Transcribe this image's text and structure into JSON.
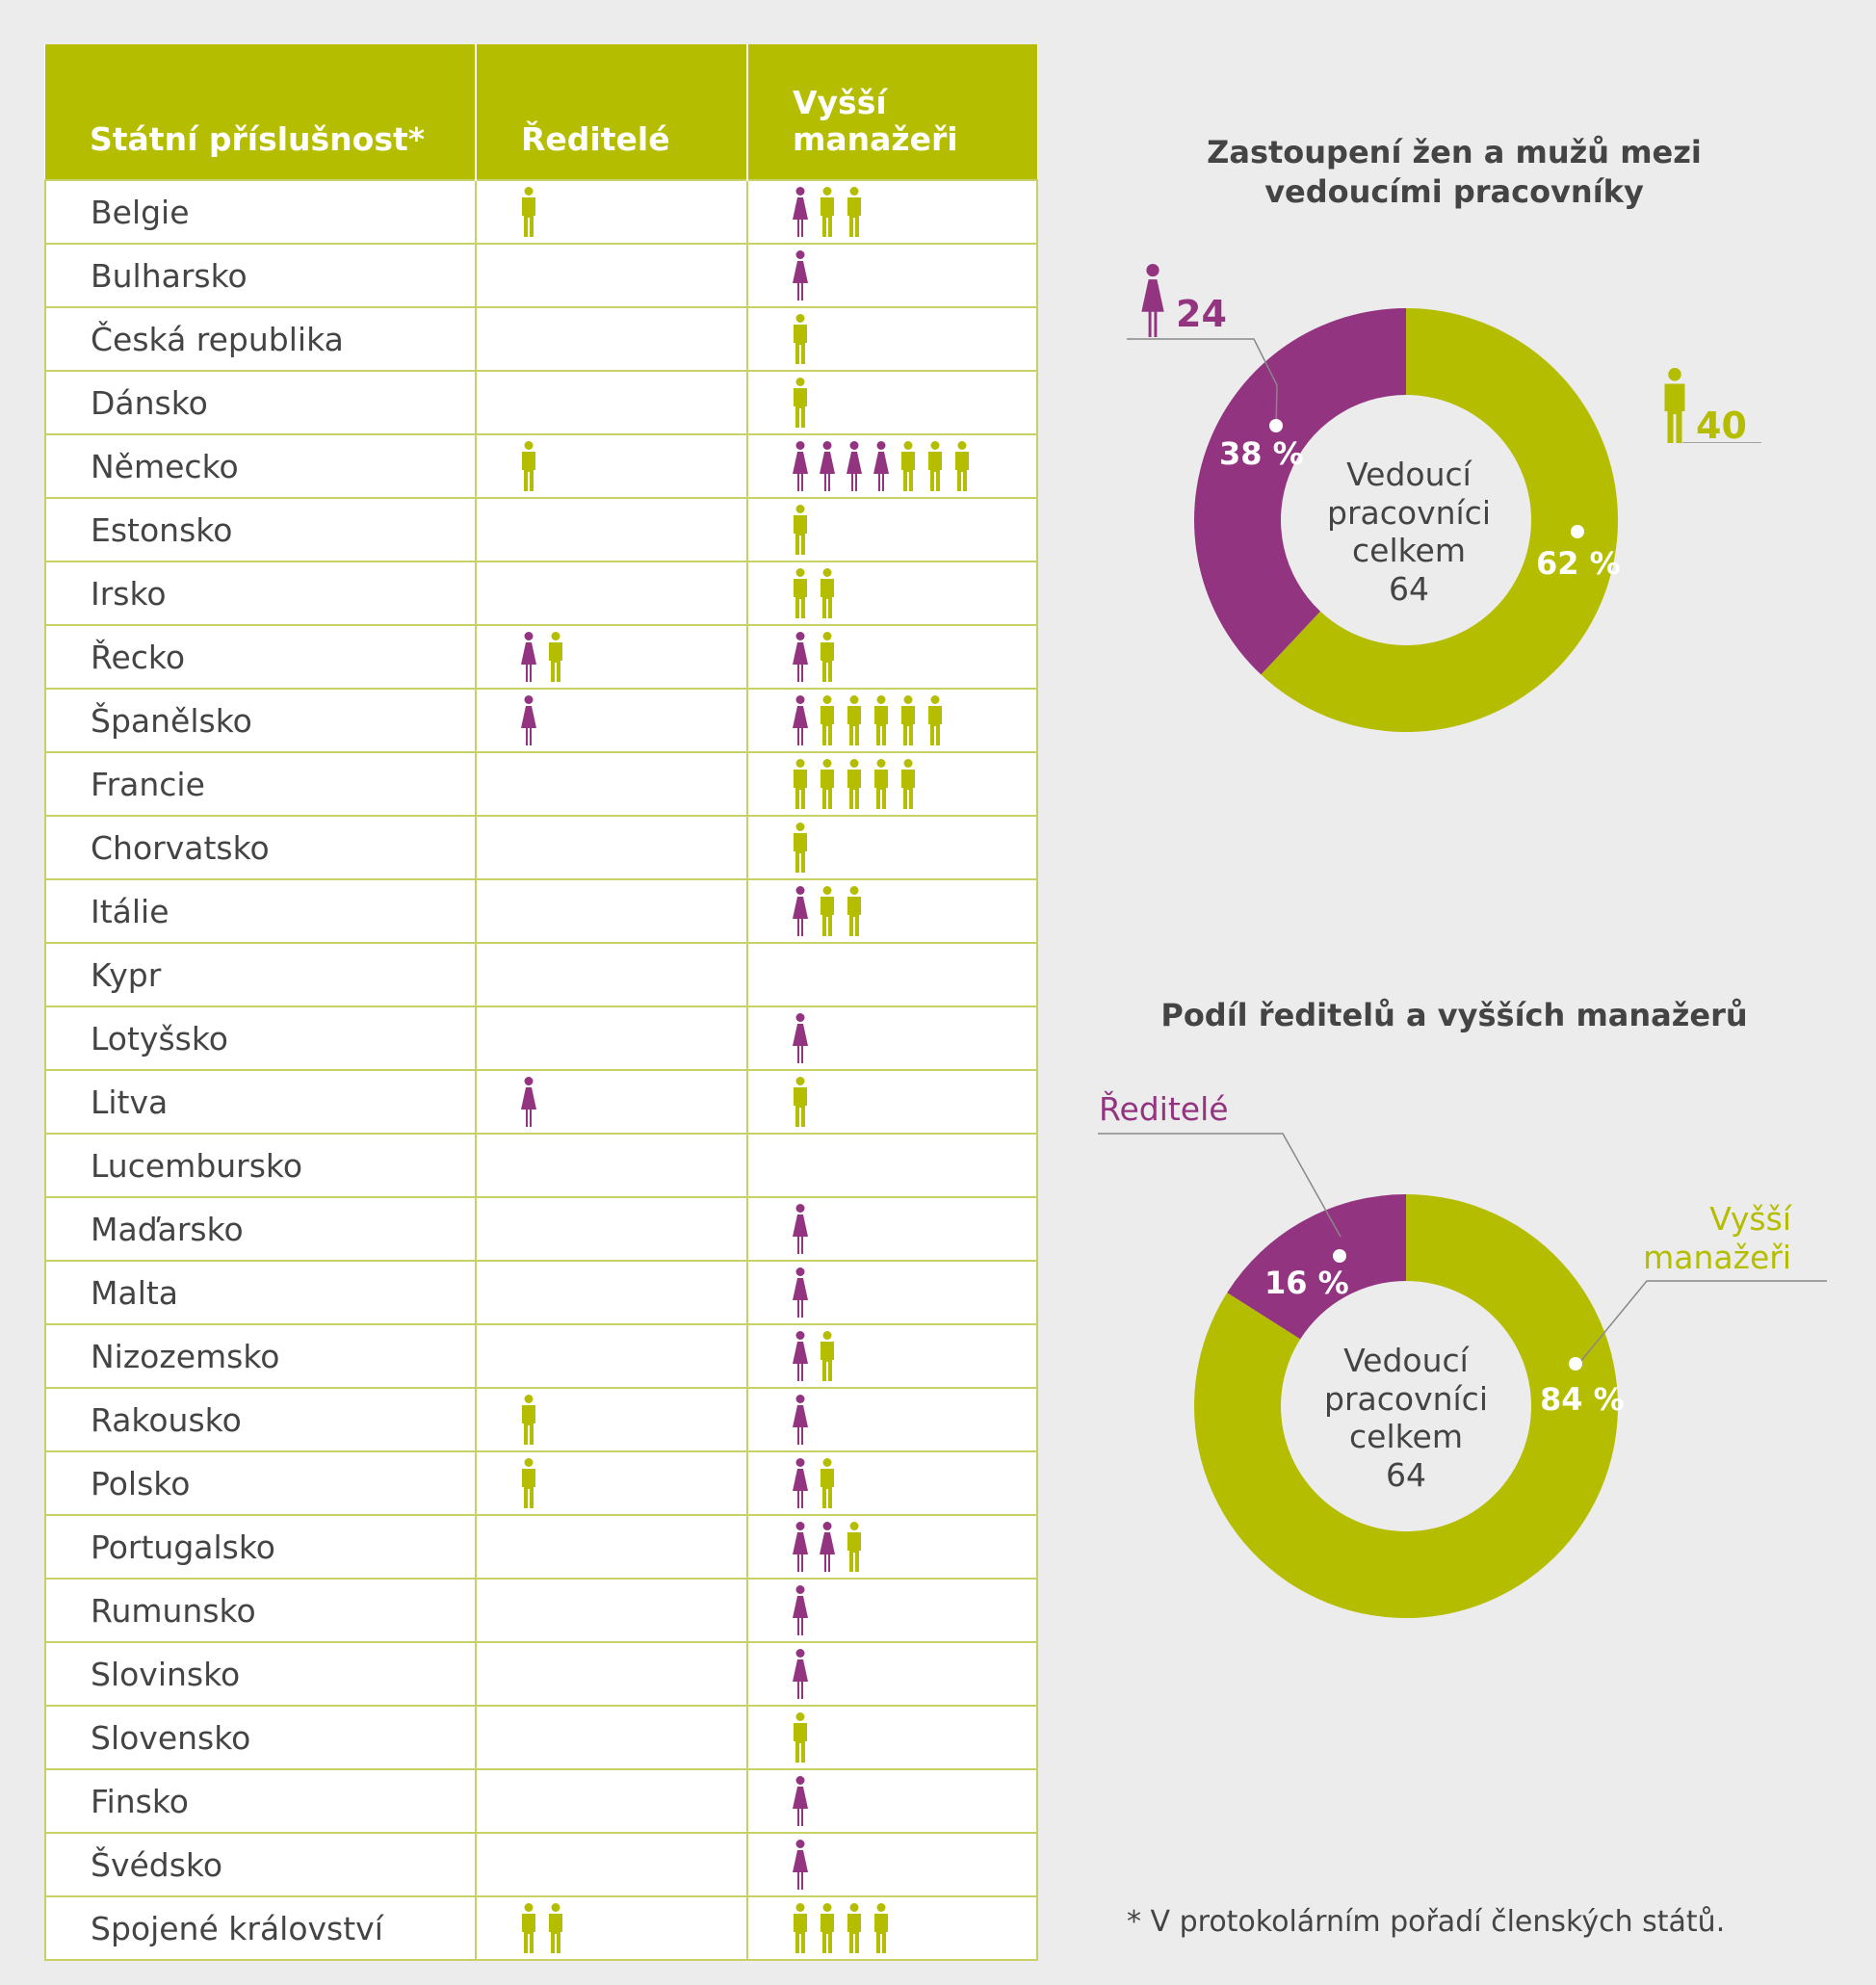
{
  "colors": {
    "women": "#933481",
    "men": "#b5bd00",
    "header": "#b5bd00"
  },
  "table": {
    "headers": {
      "country": "Státní příslušnost*",
      "directors": "Ředitelé",
      "senior": "Vyšší manažeři"
    },
    "rows": [
      {
        "country": "Belgie",
        "directors": {
          "f": 0,
          "m": 1
        },
        "senior": {
          "f": 1,
          "m": 2
        }
      },
      {
        "country": "Bulharsko",
        "directors": {
          "f": 0,
          "m": 0
        },
        "senior": {
          "f": 1,
          "m": 0
        }
      },
      {
        "country": "Česká republika",
        "directors": {
          "f": 0,
          "m": 0
        },
        "senior": {
          "f": 0,
          "m": 1
        }
      },
      {
        "country": "Dánsko",
        "directors": {
          "f": 0,
          "m": 0
        },
        "senior": {
          "f": 0,
          "m": 1
        }
      },
      {
        "country": "Německo",
        "directors": {
          "f": 0,
          "m": 1
        },
        "senior": {
          "f": 4,
          "m": 3
        }
      },
      {
        "country": "Estonsko",
        "directors": {
          "f": 0,
          "m": 0
        },
        "senior": {
          "f": 0,
          "m": 1
        }
      },
      {
        "country": "Irsko",
        "directors": {
          "f": 0,
          "m": 0
        },
        "senior": {
          "f": 0,
          "m": 2
        }
      },
      {
        "country": "Řecko",
        "directors": {
          "f": 1,
          "m": 1
        },
        "senior": {
          "f": 1,
          "m": 1
        }
      },
      {
        "country": "Španělsko",
        "directors": {
          "f": 1,
          "m": 0
        },
        "senior": {
          "f": 1,
          "m": 5
        }
      },
      {
        "country": "Francie",
        "directors": {
          "f": 0,
          "m": 0
        },
        "senior": {
          "f": 0,
          "m": 5
        }
      },
      {
        "country": "Chorvatsko",
        "directors": {
          "f": 0,
          "m": 0
        },
        "senior": {
          "f": 0,
          "m": 1
        }
      },
      {
        "country": "Itálie",
        "directors": {
          "f": 0,
          "m": 0
        },
        "senior": {
          "f": 1,
          "m": 2
        }
      },
      {
        "country": "Kypr",
        "directors": {
          "f": 0,
          "m": 0
        },
        "senior": {
          "f": 0,
          "m": 0
        }
      },
      {
        "country": "Lotyšsko",
        "directors": {
          "f": 0,
          "m": 0
        },
        "senior": {
          "f": 1,
          "m": 0
        }
      },
      {
        "country": "Litva",
        "directors": {
          "f": 1,
          "m": 0
        },
        "senior": {
          "f": 0,
          "m": 1
        }
      },
      {
        "country": "Lucembursko",
        "directors": {
          "f": 0,
          "m": 0
        },
        "senior": {
          "f": 0,
          "m": 0
        }
      },
      {
        "country": "Maďarsko",
        "directors": {
          "f": 0,
          "m": 0
        },
        "senior": {
          "f": 1,
          "m": 0
        }
      },
      {
        "country": "Malta",
        "directors": {
          "f": 0,
          "m": 0
        },
        "senior": {
          "f": 1,
          "m": 0
        }
      },
      {
        "country": "Nizozemsko",
        "directors": {
          "f": 0,
          "m": 0
        },
        "senior": {
          "f": 1,
          "m": 1
        }
      },
      {
        "country": "Rakousko",
        "directors": {
          "f": 0,
          "m": 1
        },
        "senior": {
          "f": 1,
          "m": 0
        }
      },
      {
        "country": "Polsko",
        "directors": {
          "f": 0,
          "m": 1
        },
        "senior": {
          "f": 1,
          "m": 1
        }
      },
      {
        "country": "Portugalsko",
        "directors": {
          "f": 0,
          "m": 0
        },
        "senior": {
          "f": 2,
          "m": 1
        }
      },
      {
        "country": "Rumunsko",
        "directors": {
          "f": 0,
          "m": 0
        },
        "senior": {
          "f": 1,
          "m": 0
        }
      },
      {
        "country": "Slovinsko",
        "directors": {
          "f": 0,
          "m": 0
        },
        "senior": {
          "f": 1,
          "m": 0
        }
      },
      {
        "country": "Slovensko",
        "directors": {
          "f": 0,
          "m": 0
        },
        "senior": {
          "f": 0,
          "m": 1
        }
      },
      {
        "country": "Finsko",
        "directors": {
          "f": 0,
          "m": 0
        },
        "senior": {
          "f": 1,
          "m": 0
        }
      },
      {
        "country": "Švédsko",
        "directors": {
          "f": 0,
          "m": 0
        },
        "senior": {
          "f": 1,
          "m": 0
        }
      },
      {
        "country": "Spojené království",
        "directors": {
          "f": 0,
          "m": 2
        },
        "senior": {
          "f": 0,
          "m": 4
        }
      }
    ]
  },
  "chart_data": [
    {
      "type": "pie",
      "title": "Zastoupení žen a mužů mezi vedoucími pracovníky",
      "center_label": [
        "Vedoucí",
        "pracovníci",
        "celkem",
        "64"
      ],
      "slices": [
        {
          "key": "women",
          "count": "24",
          "percent": 38,
          "percent_label": "38 %"
        },
        {
          "key": "men",
          "count": "40",
          "percent": 62,
          "percent_label": "62 %"
        }
      ]
    },
    {
      "type": "pie",
      "title": "Podíl ředitelů a vyšších manažerů",
      "center_label": [
        "Vedoucí",
        "pracovníci",
        "celkem",
        "64"
      ],
      "slices": [
        {
          "key": "directors",
          "name": "Ředitelé",
          "percent": 16,
          "percent_label": "16 %"
        },
        {
          "key": "senior",
          "name": "Vyšší manažeři",
          "percent": 84,
          "percent_label": "84 %"
        }
      ]
    }
  ],
  "footnote": "* V protokolárním pořadí členských států."
}
